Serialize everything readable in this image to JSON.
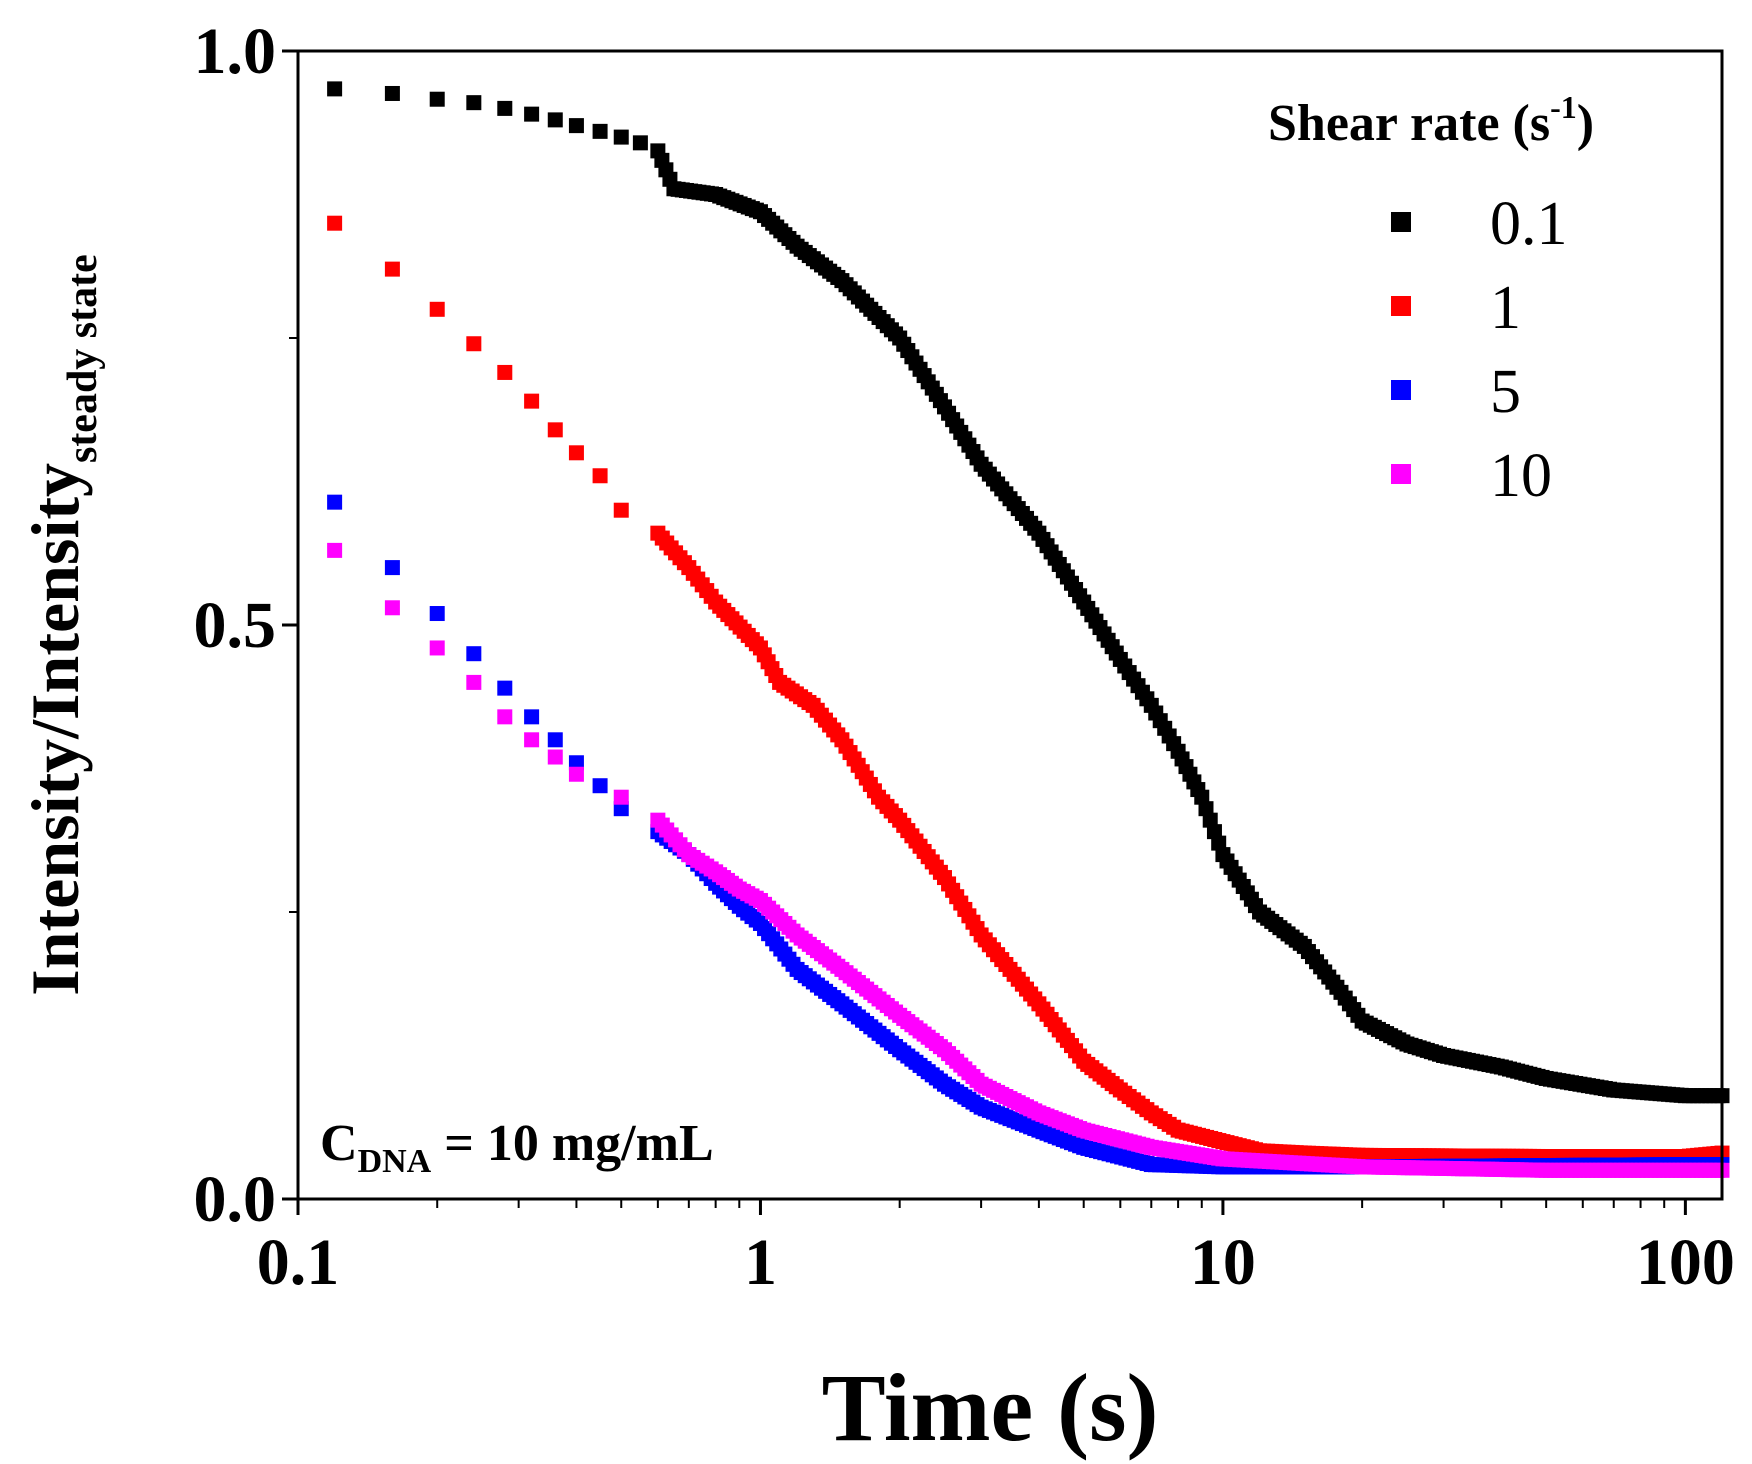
{
  "chart_data": {
    "type": "scatter",
    "title": "",
    "xlabel": "Time (s)",
    "ylabel_main": "Intensity/Intensity",
    "ylabel_sub": "steady state",
    "xscale": "log",
    "xlim": [
      0.1,
      120
    ],
    "ylim": [
      0.0,
      1.0
    ],
    "xticks": [
      {
        "v": 0.1,
        "label": "0.1"
      },
      {
        "v": 1,
        "label": "1"
      },
      {
        "v": 10,
        "label": "10"
      },
      {
        "v": 100,
        "label": "100"
      }
    ],
    "yticks": [
      {
        "v": 0.0,
        "label": "0.0"
      },
      {
        "v": 0.5,
        "label": "0.5"
      },
      {
        "v": 1.0,
        "label": "1.0"
      }
    ],
    "yminor": [
      0.25,
      0.75
    ],
    "grid": false,
    "legend": {
      "placement": "top-right",
      "title_main": "Shear rate (s",
      "title_sup": "-1",
      "title_end": ")"
    },
    "annotation": {
      "prefix": "C",
      "sub": "DNA",
      "suffix": " = 10 mg/mL",
      "placement": "bottom-left"
    },
    "series": [
      {
        "name": "0.1",
        "color": "#000000",
        "x": [
          0.12,
          0.16,
          0.2,
          0.24,
          0.28,
          0.32,
          0.36,
          0.4,
          0.45,
          0.5,
          0.55,
          0.6,
          0.65,
          0.8,
          1.0,
          1.2,
          1.5,
          2,
          2.5,
          3,
          4,
          5,
          6,
          7,
          8,
          9,
          10,
          12,
          15,
          18,
          20,
          25,
          30,
          40,
          50,
          70,
          100,
          120
        ],
        "y": [
          0.967,
          0.963,
          0.958,
          0.955,
          0.95,
          0.945,
          0.94,
          0.935,
          0.93,
          0.925,
          0.92,
          0.913,
          0.88,
          0.875,
          0.86,
          0.83,
          0.8,
          0.75,
          0.69,
          0.64,
          0.58,
          0.52,
          0.47,
          0.43,
          0.39,
          0.35,
          0.3,
          0.25,
          0.22,
          0.18,
          0.155,
          0.135,
          0.125,
          0.115,
          0.105,
          0.095,
          0.09,
          0.09
        ]
      },
      {
        "name": "1",
        "color": "#ff0000",
        "x": [
          0.12,
          0.16,
          0.2,
          0.24,
          0.28,
          0.32,
          0.36,
          0.4,
          0.45,
          0.5,
          0.6,
          0.7,
          0.8,
          1.0,
          1.1,
          1.3,
          1.5,
          1.8,
          2,
          2.5,
          3,
          4,
          5,
          6,
          7,
          8,
          10,
          12,
          15,
          20,
          50,
          100,
          120
        ],
        "y": [
          0.85,
          0.81,
          0.775,
          0.745,
          0.72,
          0.695,
          0.67,
          0.65,
          0.63,
          0.6,
          0.58,
          0.55,
          0.52,
          0.48,
          0.45,
          0.43,
          0.4,
          0.35,
          0.33,
          0.28,
          0.23,
          0.17,
          0.12,
          0.095,
          0.075,
          0.06,
          0.05,
          0.042,
          0.04,
          0.038,
          0.037,
          0.037,
          0.04
        ]
      },
      {
        "name": "5",
        "color": "#0000ff",
        "x": [
          0.12,
          0.16,
          0.2,
          0.24,
          0.28,
          0.32,
          0.36,
          0.4,
          0.45,
          0.5,
          0.6,
          0.7,
          0.8,
          0.9,
          1,
          1.2,
          1.5,
          2,
          2.5,
          3,
          4,
          5,
          7,
          10,
          20,
          100,
          120
        ],
        "y": [
          0.607,
          0.55,
          0.51,
          0.475,
          0.445,
          0.42,
          0.4,
          0.38,
          0.36,
          0.34,
          0.32,
          0.3,
          0.275,
          0.255,
          0.24,
          0.2,
          0.17,
          0.13,
          0.1,
          0.08,
          0.06,
          0.045,
          0.03,
          0.028,
          0.028,
          0.03,
          0.03
        ]
      },
      {
        "name": "10",
        "color": "#ff00ff",
        "x": [
          0.12,
          0.16,
          0.2,
          0.24,
          0.28,
          0.32,
          0.36,
          0.4,
          0.5,
          0.6,
          0.7,
          0.8,
          0.9,
          1,
          1.2,
          1.5,
          2,
          2.5,
          3,
          4,
          5,
          7,
          10,
          20,
          50,
          120
        ],
        "y": [
          0.565,
          0.515,
          0.48,
          0.45,
          0.42,
          0.4,
          0.385,
          0.37,
          0.35,
          0.33,
          0.3,
          0.285,
          0.27,
          0.26,
          0.23,
          0.2,
          0.16,
          0.13,
          0.1,
          0.075,
          0.06,
          0.045,
          0.035,
          0.028,
          0.025,
          0.025
        ]
      }
    ]
  }
}
